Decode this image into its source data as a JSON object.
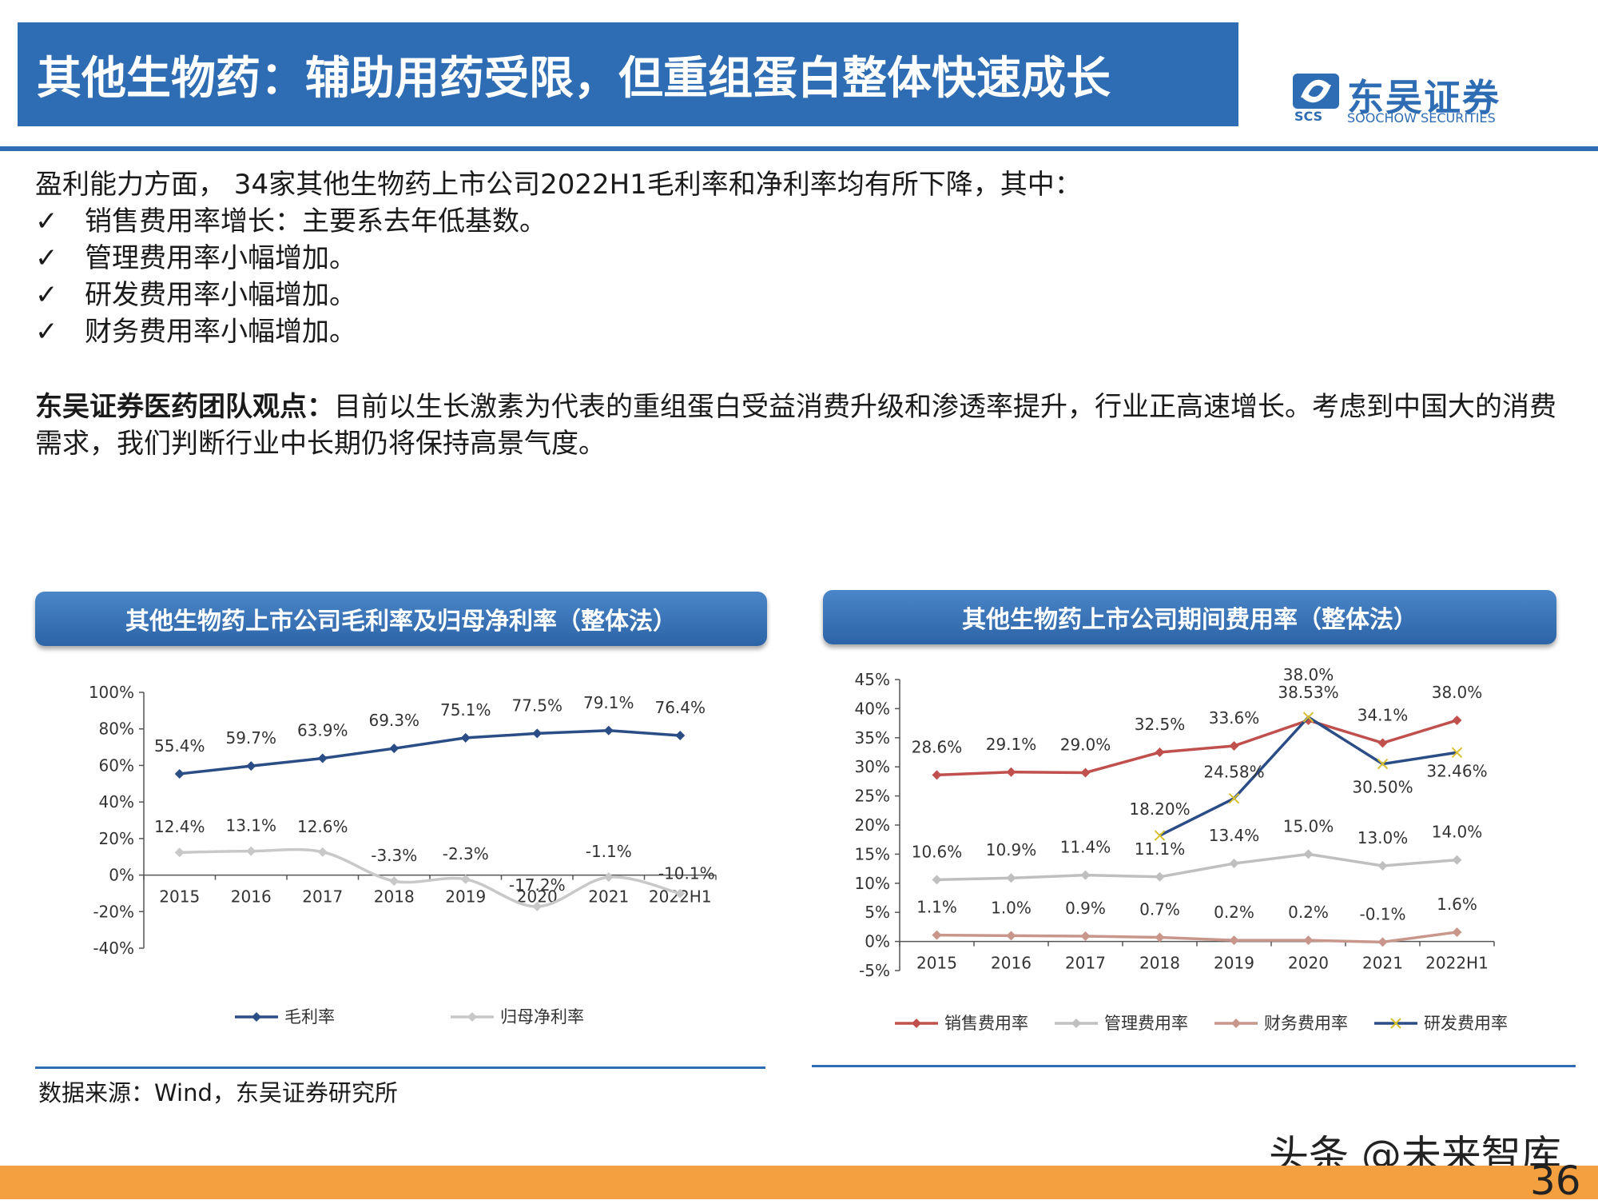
{
  "header": {
    "title": "其他生物药：辅助用药受限，但重组蛋白整体快速成长",
    "logo_cn": "东吴证券",
    "logo_en": "SOOCHOW SECURITIES",
    "logo_abbr": "SCS",
    "colors": {
      "brand": "#2e6db4",
      "footer": "#f4a040"
    }
  },
  "body": {
    "intro": "盈利能力方面， 34家其他生物药上市公司2022H1毛利率和净利率均有所下降，其中：",
    "check_mark": "✓",
    "bullets": [
      "销售费用率增长：主要系去年低基数。",
      "管理费用率小幅增加。",
      "研发费用率小幅增加。",
      "财务费用率小幅增加。"
    ],
    "view_label": "东吴证券医药团队观点：",
    "view_text": "目前以生长激素为代表的重组蛋白受益消费升级和渗透率提升，行业正高速增长。考虑到中国大的消费需求，我们判断行业中长期仍将保持高景气度。"
  },
  "footer": {
    "source": "数据来源：Wind，东吴证券研究所",
    "watermark": "头条 @未来智库",
    "page": "36"
  },
  "chart_data": [
    {
      "type": "line",
      "title": "其他生物药上市公司毛利率及归母净利率（整体法）",
      "categories": [
        "2015",
        "2016",
        "2017",
        "2018",
        "2019",
        "2020",
        "2021",
        "2022H1"
      ],
      "ylim": [
        -40,
        100
      ],
      "yticks": [
        -40,
        -20,
        0,
        20,
        40,
        60,
        80,
        100
      ],
      "y_format": "percent",
      "legend_position": "bottom",
      "grid": false,
      "series": [
        {
          "name": "毛利率",
          "color": "#2b4d86",
          "marker": "diamond",
          "values": [
            55.4,
            59.7,
            63.9,
            69.3,
            75.1,
            77.5,
            79.1,
            76.4
          ],
          "labels": [
            "55.4%",
            "59.7%",
            "63.9%",
            "69.3%",
            "75.1%",
            "77.5%",
            "79.1%",
            "76.4%"
          ]
        },
        {
          "name": "归母净利率",
          "color": "#c8c8c8",
          "marker": "diamond",
          "smooth": true,
          "values": [
            12.4,
            13.1,
            12.6,
            -3.3,
            -2.3,
            -17.2,
            -1.1,
            -10.1
          ],
          "labels": [
            "12.4%",
            "13.1%",
            "12.6%",
            "-3.3%",
            "-2.3%",
            "-17.2%",
            "-1.1%",
            "-10.1%"
          ]
        }
      ]
    },
    {
      "type": "line",
      "title": "其他生物药上市公司期间费用率（整体法）",
      "categories": [
        "2015",
        "2016",
        "2017",
        "2018",
        "2019",
        "2020",
        "2021",
        "2022H1"
      ],
      "ylim": [
        -5,
        45
      ],
      "yticks": [
        -5,
        0,
        5,
        10,
        15,
        20,
        25,
        30,
        35,
        40,
        45
      ],
      "y_format": "percent",
      "legend_position": "bottom",
      "grid": false,
      "series": [
        {
          "name": "销售费用率",
          "color": "#c0504d",
          "marker": "diamond",
          "values": [
            28.6,
            29.1,
            29.0,
            32.5,
            33.6,
            38.0,
            34.1,
            38.0
          ],
          "labels": [
            "28.6%",
            "29.1%",
            "29.0%",
            "32.5%",
            "33.6%",
            "38.0%",
            "34.1%",
            "38.0%"
          ]
        },
        {
          "name": "管理费用率",
          "color": "#bfbfbf",
          "marker": "diamond",
          "values": [
            10.6,
            10.9,
            11.4,
            11.1,
            13.4,
            15.0,
            13.0,
            14.0
          ],
          "labels": [
            "10.6%",
            "10.9%",
            "11.4%",
            "11.1%",
            "13.4%",
            "15.0%",
            "13.0%",
            "14.0%"
          ]
        },
        {
          "name": "财务费用率",
          "color": "#c9968c",
          "marker": "diamond",
          "values": [
            1.1,
            1.0,
            0.9,
            0.7,
            0.2,
            0.2,
            -0.1,
            1.6
          ],
          "labels": [
            "1.1%",
            "1.0%",
            "0.9%",
            "0.7%",
            "0.2%",
            "0.2%",
            "-0.1%",
            "1.6%"
          ]
        },
        {
          "name": "研发费用率",
          "color": "#2b4d86",
          "marker": "x",
          "values": [
            null,
            null,
            null,
            18.2,
            24.58,
            38.53,
            30.5,
            32.46
          ],
          "labels": [
            "",
            "",
            "",
            "18.20%",
            "24.58%",
            "38.53%",
            "30.50%",
            "32.46%"
          ]
        }
      ]
    }
  ]
}
